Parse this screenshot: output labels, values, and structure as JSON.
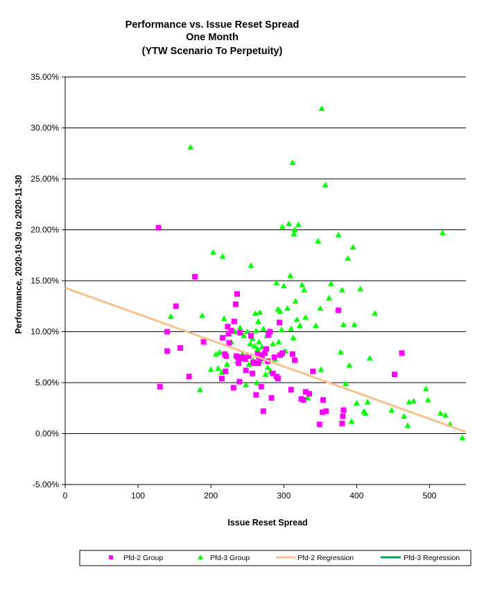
{
  "chart_data": {
    "type": "scatter",
    "title": [
      "Performance vs. Issue Reset Spread",
      "One Month",
      "(YTW Scenario To Perpetuity)"
    ],
    "xlabel": "Issue Reset Spread",
    "ylabel": "Performance, 2020-10-30 to 2020-11-30",
    "xlim": [
      0,
      550
    ],
    "ylim": [
      -5,
      35
    ],
    "x_ticks": [
      0,
      100,
      200,
      300,
      400,
      500
    ],
    "x_tick_labels": [
      "0",
      "100",
      "200",
      "300",
      "400",
      "500"
    ],
    "y_ticks": [
      -5,
      0,
      5,
      10,
      15,
      20,
      25,
      30,
      35
    ],
    "y_tick_labels": [
      "-5.00%",
      "0.00%",
      "5.00%",
      "10.00%",
      "15.00%",
      "20.00%",
      "25.00%",
      "30.00%",
      "35.00%"
    ],
    "grid": "horizontal",
    "legend_position": "bottom",
    "colors": {
      "pfd2": "#ff00ff",
      "pfd3": "#00ff00",
      "pfd2_regression": "#f8c08c",
      "pfd3_regression": "#00a650"
    },
    "legend": [
      "Pfd-2 Group",
      "Pfd-3 Group",
      "Pfd-2 Regression",
      "Pfd-3 Regression"
    ],
    "series": [
      {
        "name": "Pfd-2 Group",
        "marker": "square",
        "points": [
          [
            128,
            20.2
          ],
          [
            130,
            4.6
          ],
          [
            140,
            10.0
          ],
          [
            140,
            8.1
          ],
          [
            152,
            12.5
          ],
          [
            158,
            8.4
          ],
          [
            170,
            5.6
          ],
          [
            178,
            15.4
          ],
          [
            190,
            9.0
          ],
          [
            215,
            5.4
          ],
          [
            216,
            9.4
          ],
          [
            219,
            7.8
          ],
          [
            220,
            6.1
          ],
          [
            221,
            7.6
          ],
          [
            223,
            10.5
          ],
          [
            224,
            9.8
          ],
          [
            225,
            8.9
          ],
          [
            228,
            10.1
          ],
          [
            231,
            4.5
          ],
          [
            232,
            11.0
          ],
          [
            234,
            12.7
          ],
          [
            235,
            7.6
          ],
          [
            236,
            13.7
          ],
          [
            237,
            7.5
          ],
          [
            238,
            6.9
          ],
          [
            239,
            5.1
          ],
          [
            240,
            9.9
          ],
          [
            241,
            7.4
          ],
          [
            244,
            7.5
          ],
          [
            247,
            7.3
          ],
          [
            248,
            6.2
          ],
          [
            252,
            7.6
          ],
          [
            255,
            9.6
          ],
          [
            257,
            5.9
          ],
          [
            258,
            7.0
          ],
          [
            260,
            6.9
          ],
          [
            262,
            3.8
          ],
          [
            264,
            7.8
          ],
          [
            265,
            6.9
          ],
          [
            266,
            7.5
          ],
          [
            267,
            7.7
          ],
          [
            269,
            4.6
          ],
          [
            270,
            7.4
          ],
          [
            272,
            2.2
          ],
          [
            274,
            7.9
          ],
          [
            276,
            8.3
          ],
          [
            278,
            7.1
          ],
          [
            279,
            9.7
          ],
          [
            281,
            10.0
          ],
          [
            283,
            3.5
          ],
          [
            285,
            5.9
          ],
          [
            287,
            7.5
          ],
          [
            290,
            5.6
          ],
          [
            292,
            5.4
          ],
          [
            294,
            10.9
          ],
          [
            295,
            7.7
          ],
          [
            298,
            7.9
          ],
          [
            310,
            4.3
          ],
          [
            312,
            7.8
          ],
          [
            315,
            7.2
          ],
          [
            324,
            3.4
          ],
          [
            327,
            3.3
          ],
          [
            330,
            4.1
          ],
          [
            335,
            3.9
          ],
          [
            340,
            6.1
          ],
          [
            349,
            0.9
          ],
          [
            353,
            2.1
          ],
          [
            354,
            3.3
          ],
          [
            358,
            2.2
          ],
          [
            375,
            12.1
          ],
          [
            380,
            1.0
          ],
          [
            381,
            1.7
          ],
          [
            382,
            2.3
          ],
          [
            452,
            5.8
          ],
          [
            462,
            7.9
          ]
        ]
      },
      {
        "name": "Pfd-3 Group",
        "marker": "triangle",
        "points": [
          [
            145,
            11.5
          ],
          [
            172,
            28.1
          ],
          [
            185,
            4.3
          ],
          [
            188,
            11.6
          ],
          [
            200,
            6.3
          ],
          [
            203,
            17.8
          ],
          [
            207,
            7.8
          ],
          [
            210,
            6.4
          ],
          [
            212,
            8.0
          ],
          [
            215,
            6.0
          ],
          [
            216,
            17.4
          ],
          [
            218,
            11.3
          ],
          [
            222,
            6.8
          ],
          [
            225,
            9.8
          ],
          [
            228,
            9.0
          ],
          [
            233,
            10.0
          ],
          [
            236,
            7.1
          ],
          [
            240,
            10.4
          ],
          [
            243,
            7.8
          ],
          [
            245,
            9.6
          ],
          [
            248,
            4.8
          ],
          [
            250,
            10.0
          ],
          [
            252,
            6.8
          ],
          [
            254,
            8.8
          ],
          [
            255,
            16.5
          ],
          [
            257,
            9.3
          ],
          [
            258,
            7.2
          ],
          [
            260,
            8.6
          ],
          [
            261,
            11.8
          ],
          [
            262,
            10.1
          ],
          [
            263,
            5.0
          ],
          [
            264,
            8.3
          ],
          [
            265,
            11.0
          ],
          [
            266,
            9.0
          ],
          [
            267,
            11.9
          ],
          [
            268,
            7.1
          ],
          [
            270,
            8.5
          ],
          [
            272,
            10.3
          ],
          [
            275,
            5.8
          ],
          [
            277,
            9.6
          ],
          [
            278,
            6.5
          ],
          [
            280,
            10.0
          ],
          [
            282,
            6.1
          ],
          [
            285,
            8.8
          ],
          [
            288,
            7.3
          ],
          [
            290,
            14.8
          ],
          [
            292,
            12.2
          ],
          [
            293,
            9.0
          ],
          [
            295,
            12.0
          ],
          [
            297,
            10.2
          ],
          [
            298,
            20.3
          ],
          [
            300,
            14.5
          ],
          [
            302,
            8.1
          ],
          [
            305,
            12.3
          ],
          [
            307,
            20.6
          ],
          [
            309,
            15.5
          ],
          [
            310,
            10.3
          ],
          [
            312,
            26.6
          ],
          [
            313,
            9.4
          ],
          [
            314,
            19.6
          ],
          [
            315,
            20.0
          ],
          [
            316,
            13.0
          ],
          [
            318,
            11.2
          ],
          [
            320,
            20.5
          ],
          [
            322,
            10.6
          ],
          [
            325,
            14.6
          ],
          [
            328,
            14.1
          ],
          [
            330,
            11.4
          ],
          [
            333,
            3.5
          ],
          [
            335,
            4.0
          ],
          [
            344,
            10.6
          ],
          [
            347,
            18.9
          ],
          [
            350,
            12.3
          ],
          [
            351,
            6.3
          ],
          [
            352,
            31.9
          ],
          [
            357,
            24.4
          ],
          [
            362,
            13.3
          ],
          [
            365,
            14.7
          ],
          [
            375,
            19.5
          ],
          [
            378,
            8.0
          ],
          [
            380,
            14.1
          ],
          [
            382,
            10.7
          ],
          [
            385,
            4.9
          ],
          [
            388,
            17.2
          ],
          [
            390,
            6.7
          ],
          [
            393,
            1.2
          ],
          [
            395,
            18.3
          ],
          [
            397,
            10.7
          ],
          [
            400,
            3.0
          ],
          [
            405,
            14.2
          ],
          [
            410,
            2.2
          ],
          [
            412,
            2.0
          ],
          [
            415,
            3.1
          ],
          [
            418,
            7.4
          ],
          [
            425,
            11.8
          ],
          [
            448,
            2.3
          ],
          [
            465,
            1.7
          ],
          [
            470,
            0.8
          ],
          [
            472,
            3.1
          ],
          [
            478,
            3.2
          ],
          [
            495,
            4.4
          ],
          [
            498,
            3.3
          ],
          [
            515,
            2.0
          ],
          [
            518,
            19.7
          ],
          [
            522,
            1.8
          ],
          [
            528,
            0.9
          ],
          [
            545,
            -0.4
          ]
        ]
      }
    ],
    "regression": [
      {
        "name": "Pfd-2 Regression",
        "intercept": 14.3,
        "slope": -0.0257,
        "x_range": [
          0,
          550
        ]
      },
      {
        "name": "Pfd-3 Regression",
        "visible": false
      }
    ]
  }
}
